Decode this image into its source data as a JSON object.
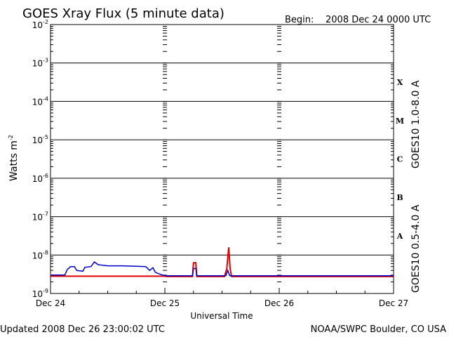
{
  "header": {
    "title": "GOES Xray Flux (5 minute data)",
    "begin_label": "Begin:",
    "begin_value": "2008 Dec 24 0000 UTC"
  },
  "footer": {
    "updated": "Updated 2008 Dec 26 23:00:02 UTC",
    "credit": "NOAA/SWPC Boulder, CO USA"
  },
  "chart_data": {
    "type": "line",
    "title": "GOES Xray Flux (5 minute data)",
    "xlabel": "Universal Time",
    "ylabel": "Watts m",
    "ylabel_exponent": "-2",
    "x_unit": "hours since 2008 Dec 24 0000 UTC",
    "xlim": [
      0,
      72
    ],
    "x_ticks": [
      {
        "value": 0,
        "label": "Dec 24"
      },
      {
        "value": 24,
        "label": "Dec 25"
      },
      {
        "value": 48,
        "label": "Dec 26"
      },
      {
        "value": 72,
        "label": "Dec 27"
      }
    ],
    "y_scale": "log",
    "ylim_exponents": [
      -9,
      -2
    ],
    "y_ticks": [
      {
        "base": "10",
        "exp": "-2"
      },
      {
        "base": "10",
        "exp": "-3"
      },
      {
        "base": "10",
        "exp": "-4"
      },
      {
        "base": "10",
        "exp": "-5"
      },
      {
        "base": "10",
        "exp": "-6"
      },
      {
        "base": "10",
        "exp": "-7"
      },
      {
        "base": "10",
        "exp": "-8"
      },
      {
        "base": "10",
        "exp": "-9"
      }
    ],
    "grid": true,
    "flare_classes": [
      {
        "label": "X",
        "exp": -3.5
      },
      {
        "label": "M",
        "exp": -4.5
      },
      {
        "label": "C",
        "exp": -5.5
      },
      {
        "label": "B",
        "exp": -6.5
      },
      {
        "label": "A",
        "exp": -7.5
      }
    ],
    "series": [
      {
        "name": "GOES10 1.0-8.0 A",
        "color": "#e00000",
        "points": [
          [
            0,
            -8.55
          ],
          [
            24,
            -8.55
          ],
          [
            24.5,
            -8.56
          ],
          [
            29.8,
            -8.56
          ],
          [
            30.0,
            -8.2
          ],
          [
            30.5,
            -8.2
          ],
          [
            30.7,
            -8.56
          ],
          [
            36.5,
            -8.56
          ],
          [
            37.0,
            -8.35
          ],
          [
            37.4,
            -7.8
          ],
          [
            37.7,
            -8.35
          ],
          [
            38.0,
            -8.56
          ],
          [
            72,
            -8.56
          ]
        ]
      },
      {
        "name": "GOES10 0.5-4.0 A",
        "color": "#0000cc",
        "points": [
          [
            0,
            -8.52
          ],
          [
            3.0,
            -8.52
          ],
          [
            3.5,
            -8.38
          ],
          [
            4.2,
            -8.3
          ],
          [
            5.0,
            -8.3
          ],
          [
            5.5,
            -8.4
          ],
          [
            6.8,
            -8.42
          ],
          [
            7.2,
            -8.32
          ],
          [
            8.5,
            -8.3
          ],
          [
            9.2,
            -8.18
          ],
          [
            10.0,
            -8.25
          ],
          [
            12.0,
            -8.28
          ],
          [
            15.0,
            -8.28
          ],
          [
            18.0,
            -8.29
          ],
          [
            20.0,
            -8.3
          ],
          [
            20.8,
            -8.4
          ],
          [
            21.5,
            -8.33
          ],
          [
            22.0,
            -8.45
          ],
          [
            23.0,
            -8.5
          ],
          [
            24.0,
            -8.54
          ],
          [
            25.0,
            -8.54
          ],
          [
            29.8,
            -8.54
          ],
          [
            30.0,
            -8.35
          ],
          [
            30.5,
            -8.35
          ],
          [
            30.7,
            -8.54
          ],
          [
            36.8,
            -8.54
          ],
          [
            37.2,
            -8.4
          ],
          [
            37.6,
            -8.54
          ],
          [
            72,
            -8.54
          ]
        ]
      }
    ]
  }
}
